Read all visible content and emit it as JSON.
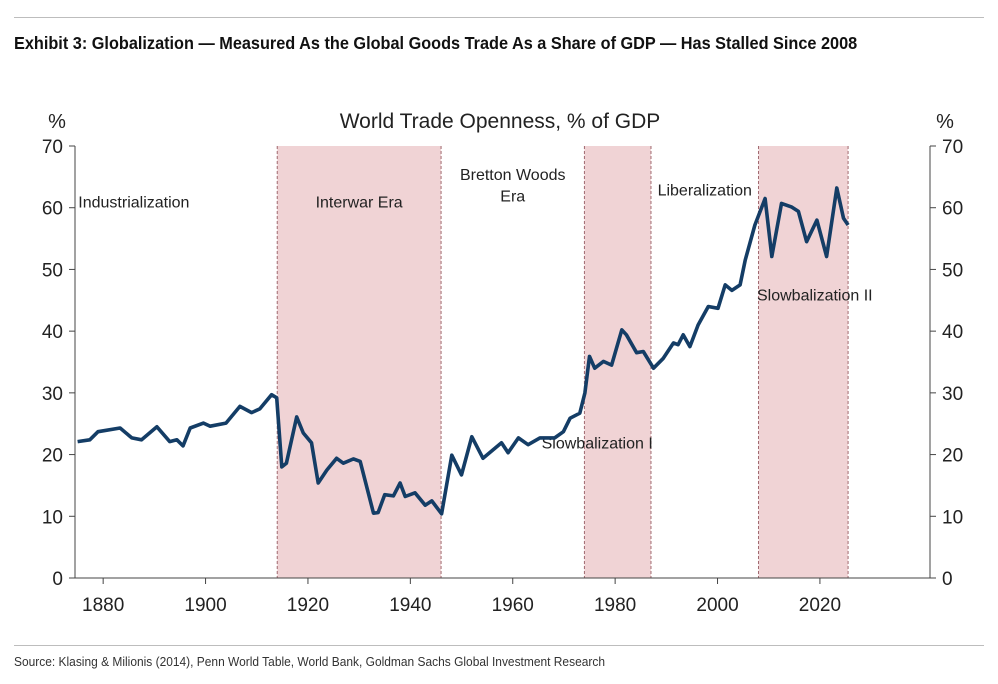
{
  "header": {
    "title": "Exhibit 3: Globalization — Measured As the Global Goods Trade As a Share of GDP — Has Stalled Since 2008"
  },
  "footer": {
    "source": "Source: Klasing & Milionis (2014), Penn World Table, World Bank, Goldman Sachs Global Investment Research"
  },
  "chart_data": {
    "type": "line",
    "title": "World Trade Openness, % of GDP",
    "ylabel_left": "%",
    "ylabel_right": "%",
    "xlim": [
      1874.5,
      2041.5
    ],
    "ylim": [
      0,
      70
    ],
    "xticks": [
      1880,
      1900,
      1920,
      1940,
      1960,
      1980,
      2000,
      2020
    ],
    "yticks": [
      0,
      10,
      20,
      30,
      40,
      50,
      60,
      70
    ],
    "grid": false,
    "colors": {
      "line": "#143d66",
      "shade": "#f0d3d5",
      "divider": "#a06a70"
    },
    "shaded_periods": [
      [
        1914,
        1946
      ],
      [
        1974,
        1987
      ],
      [
        2008,
        2025.5
      ]
    ],
    "annotations": [
      {
        "text": "Industrialization",
        "x": 1886,
        "y": 60
      },
      {
        "text": "Interwar Era",
        "x": 1930,
        "y": 60
      },
      {
        "text": "Bretton Woods",
        "x": 1960,
        "y": 64.5
      },
      {
        "text": "Era",
        "x": 1960,
        "y": 61
      },
      {
        "text": "Liberalization",
        "x": 1997.5,
        "y": 62
      },
      {
        "text": "Slowbalization II",
        "x": 2019,
        "y": 45
      },
      {
        "text": "Slowbalization I",
        "x": 1976.5,
        "y": 21
      }
    ],
    "series": [
      {
        "name": "World Trade Openness",
        "x": [
          1875,
          1877.4,
          1879,
          1883.3,
          1885.6,
          1887.5,
          1890.5,
          1893,
          1894.4,
          1895.6,
          1897,
          1899.6,
          1900.9,
          1904,
          1906.7,
          1909,
          1910.6,
          1912.9,
          1913.9,
          1914.9,
          1915.8,
          1917.8,
          1919.1,
          1920.7,
          1922,
          1923.7,
          1925.6,
          1926.9,
          1928.9,
          1930.2,
          1932.8,
          1933.7,
          1935,
          1936.7,
          1938,
          1939,
          1940.9,
          1942.9,
          1944.2,
          1946.1,
          1948.1,
          1950,
          1952,
          1954.2,
          1957.8,
          1959.1,
          1961.1,
          1963,
          1965.3,
          1968.2,
          1969.9,
          1971.2,
          1973.1,
          1974.1,
          1975,
          1976,
          1977.7,
          1979.3,
          1981.3,
          1982.2,
          1984.2,
          1985.5,
          1987.5,
          1989.4,
          1991.4,
          1992.3,
          1993.3,
          1994.6,
          1996.2,
          1998.2,
          2000.1,
          2001.5,
          2002.8,
          2004.4,
          2005.4,
          2007.3,
          2009.3,
          2010.6,
          2012.5,
          2014.5,
          2015.8,
          2017.4,
          2019.4,
          2021.3,
          2023.3,
          2024.6,
          2025.5
        ],
        "values": [
          22.1,
          22.4,
          23.7,
          24.3,
          22.7,
          22.4,
          24.5,
          22.1,
          22.4,
          21.4,
          24.3,
          25.1,
          24.6,
          25.1,
          27.8,
          26.8,
          27.4,
          29.7,
          29.2,
          18.0,
          18.6,
          26.1,
          23.5,
          21.9,
          15.4,
          17.5,
          19.4,
          18.6,
          19.3,
          18.9,
          10.5,
          10.6,
          13.5,
          13.3,
          15.4,
          13.2,
          13.8,
          11.8,
          12.5,
          10.4,
          19.9,
          16.7,
          22.9,
          19.4,
          21.9,
          20.3,
          22.7,
          21.6,
          22.7,
          22.7,
          23.7,
          25.9,
          26.7,
          30.0,
          35.9,
          34.0,
          35.1,
          34.5,
          40.2,
          39.4,
          36.5,
          36.7,
          34.0,
          35.6,
          38.1,
          37.8,
          39.4,
          37.5,
          41.0,
          44.0,
          43.7,
          47.5,
          46.6,
          47.5,
          51.5,
          57.2,
          61.5,
          52.1,
          60.7,
          60.1,
          59.4,
          54.5,
          58.0,
          52.1,
          63.2,
          58.3,
          57.2
        ]
      }
    ]
  }
}
